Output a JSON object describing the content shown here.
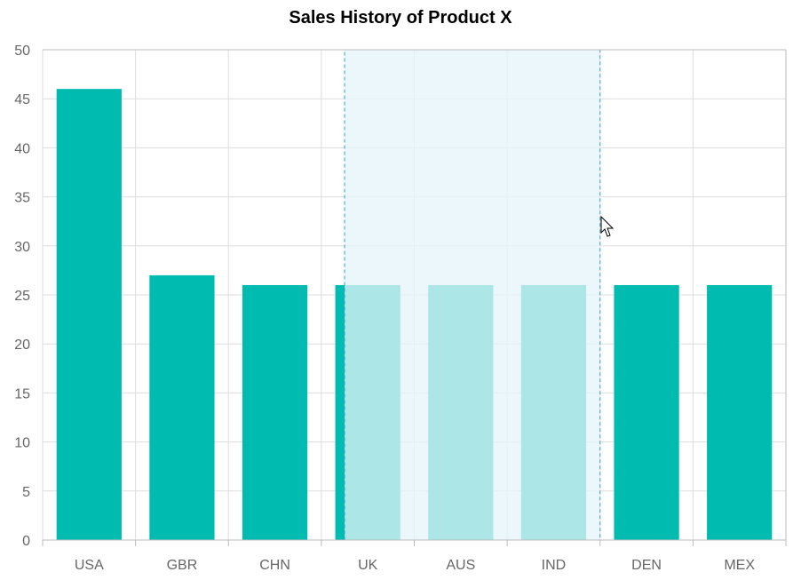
{
  "chart_data": {
    "type": "bar",
    "title": "Sales History of Product X",
    "xlabel": "",
    "ylabel": "",
    "categories": [
      "USA",
      "GBR",
      "CHN",
      "UK",
      "AUS",
      "IND",
      "DEN",
      "MEX"
    ],
    "values": [
      46,
      27,
      26,
      26,
      26,
      26,
      26,
      26
    ],
    "ylim": [
      0,
      50
    ],
    "yticks": [
      0,
      5,
      10,
      15,
      20,
      25,
      30,
      35,
      40,
      45,
      50
    ],
    "grid": true,
    "legend": "none",
    "selection_range": {
      "from": "UK",
      "to": "IND"
    },
    "colors": {
      "bar": "#00BBB0",
      "grid": "#dddddd",
      "axis": "#bbbbbb",
      "selection_fill": "#e6f4fa",
      "selection_border": "#2f9fd8"
    }
  }
}
